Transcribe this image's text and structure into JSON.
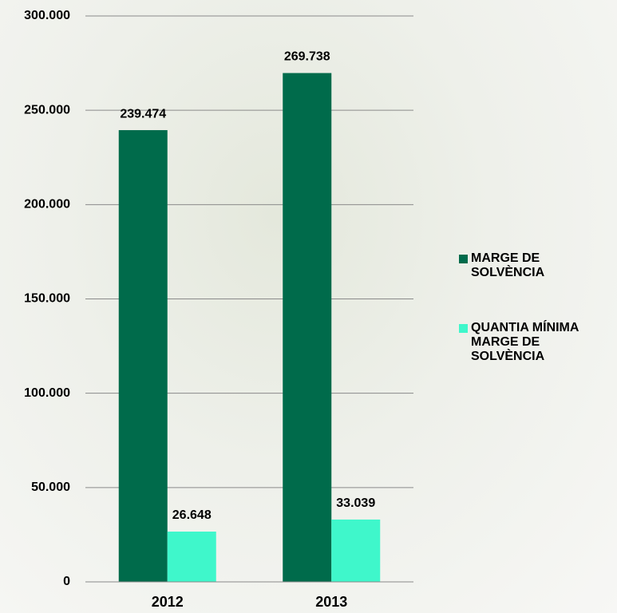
{
  "chart_data": {
    "type": "bar",
    "categories": [
      "2012",
      "2013"
    ],
    "series": [
      {
        "name": "MARGE DE SOLVÈNCIA",
        "color": "#006b4b",
        "values": [
          239474,
          269738
        ],
        "value_labels": [
          "239.474",
          "269.738"
        ]
      },
      {
        "name": "QUANTIA MÍNIMA MARGE DE SOLVÈNCIA",
        "color": "#3ff7cb",
        "values": [
          26648,
          33039
        ],
        "value_labels": [
          "26.648",
          "33.039"
        ]
      }
    ],
    "ylim": [
      0,
      300000
    ],
    "yticks": [
      0,
      {
        "value": 50000,
        "label": "50.000"
      },
      {
        "value": 100000,
        "label": "100.000"
      },
      {
        "value": 150000,
        "label": "150.000"
      },
      {
        "value": 200000,
        "label": "200.000"
      },
      {
        "value": 250000,
        "label": "250.000"
      },
      {
        "value": 300000,
        "label": "300.000"
      }
    ],
    "grid": true,
    "legend": "right"
  }
}
